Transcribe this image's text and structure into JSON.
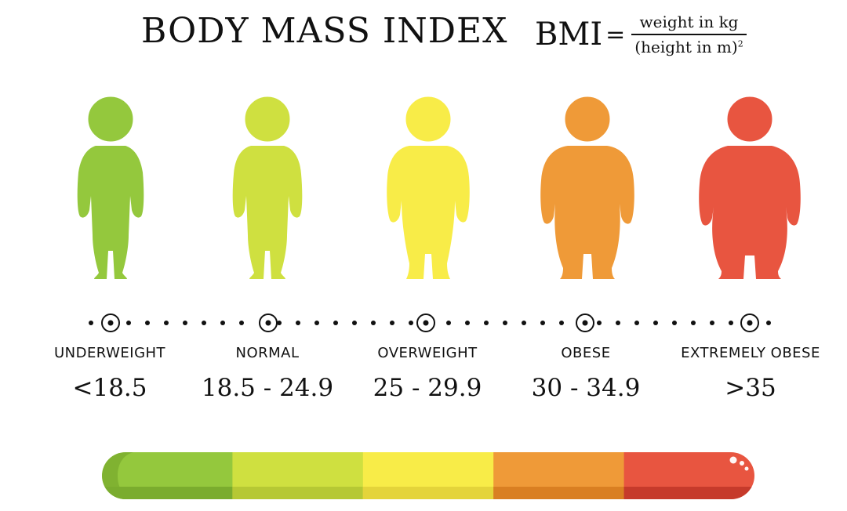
{
  "title": "BODY MASS INDEX",
  "formula": {
    "lhs": "BMI",
    "equals": "=",
    "numerator": "weight in kg",
    "denominator": "(height in m)",
    "exponent": "2"
  },
  "categories": [
    {
      "name": "UNDERWEIGHT",
      "range": "<18.5",
      "color": "#94c83d",
      "shade": "#7aac2e",
      "icon": "slim-person-icon"
    },
    {
      "name": "NORMAL",
      "range": "18.5 - 24.9",
      "color": "#cfe040",
      "shade": "#b6c834",
      "icon": "average-person-icon"
    },
    {
      "name": "OVERWEIGHT",
      "range": "25 - 29.9",
      "color": "#f8ec48",
      "shade": "#e4d43a",
      "icon": "heavier-person-icon"
    },
    {
      "name": "OBESE",
      "range": "30 - 34.9",
      "color": "#ef9a38",
      "shade": "#d97f22",
      "icon": "heavy-person-icon"
    },
    {
      "name": "EXTREMELY OBESE",
      "range": ">35",
      "color": "#e85540",
      "shade": "#c63a2b",
      "icon": "very-heavy-person-icon"
    }
  ]
}
